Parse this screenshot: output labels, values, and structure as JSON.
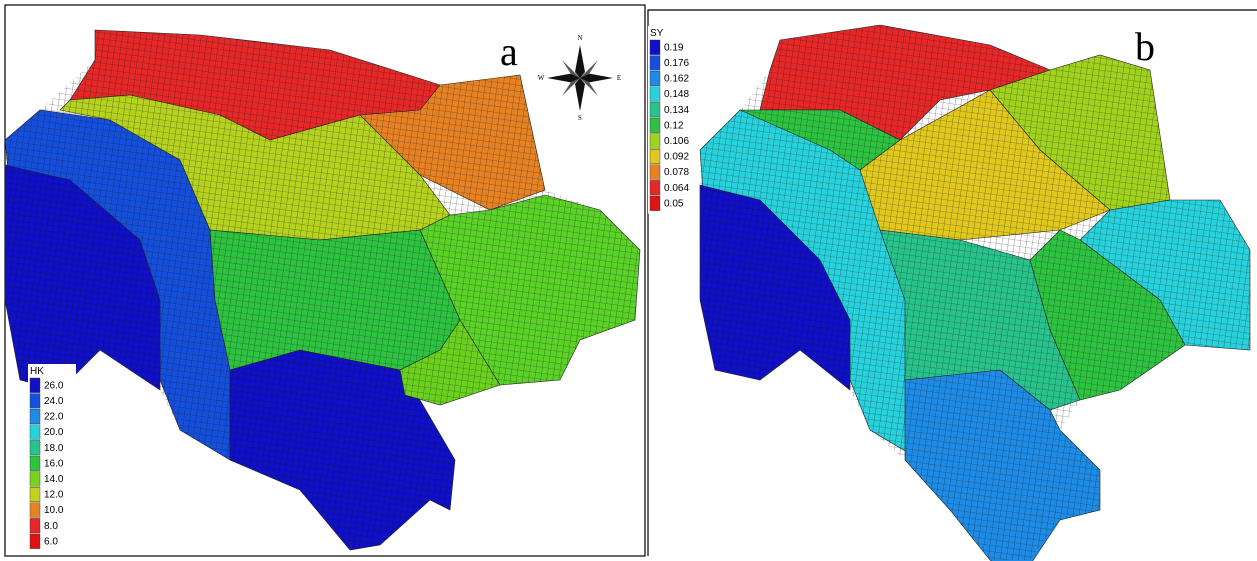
{
  "panels": [
    {
      "label": "a",
      "legend": {
        "title": "HK",
        "entries": [
          {
            "label": "26.0",
            "color": "#1010c8"
          },
          {
            "label": "24.0",
            "color": "#1450dc"
          },
          {
            "label": "22.0",
            "color": "#1e8ce6"
          },
          {
            "label": "20.0",
            "color": "#28d2dc"
          },
          {
            "label": "18.0",
            "color": "#28c38c"
          },
          {
            "label": "16.0",
            "color": "#2dc341"
          },
          {
            "label": "14.0",
            "color": "#78d21e"
          },
          {
            "label": "12.0",
            "color": "#c3d21e"
          },
          {
            "label": "10.0",
            "color": "#e68223"
          },
          {
            "label": "8.0",
            "color": "#e62828"
          },
          {
            "label": "6.0",
            "color": "#dc1414"
          }
        ]
      }
    },
    {
      "label": "b",
      "legend": {
        "title": "SY",
        "entries": [
          {
            "label": "0.19",
            "color": "#1010c8"
          },
          {
            "label": "0.176",
            "color": "#1450dc"
          },
          {
            "label": "0.162",
            "color": "#1e8ce6"
          },
          {
            "label": "0.148",
            "color": "#28d2dc"
          },
          {
            "label": "0.134",
            "color": "#28c38c"
          },
          {
            "label": "0.12",
            "color": "#2dc341"
          },
          {
            "label": "0.106",
            "color": "#a0d21e"
          },
          {
            "label": "0.092",
            "color": "#e1c81e"
          },
          {
            "label": "0.078",
            "color": "#e68223"
          },
          {
            "label": "0.064",
            "color": "#e62828"
          },
          {
            "label": "0.05",
            "color": "#dc1414"
          }
        ]
      }
    }
  ],
  "compass": {
    "north": "N",
    "east": "E",
    "south": "S",
    "west": "W"
  }
}
